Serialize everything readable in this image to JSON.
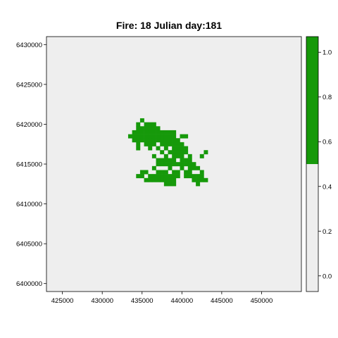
{
  "chart_data": {
    "type": "heatmap",
    "title": "Fire: 18    Julian day:181",
    "xlabel": "",
    "ylabel": "",
    "xlim": [
      423000,
      455000
    ],
    "ylim": [
      6399000,
      6431000
    ],
    "x_ticks": [
      425000,
      430000,
      435000,
      440000,
      445000,
      450000
    ],
    "y_ticks": [
      6400000,
      6405000,
      6410000,
      6415000,
      6420000,
      6425000,
      6430000
    ],
    "grid": false,
    "cell_size": 500,
    "background_value": 0,
    "burned_value": 1,
    "colorbar": {
      "ticks": [
        0.0,
        0.2,
        0.4,
        0.6,
        0.8,
        1.0
      ],
      "tick_labels": [
        "0.0",
        "0.2",
        "0.4",
        "0.6",
        "0.8",
        "1.0"
      ],
      "range": [
        -0.07,
        1.07
      ],
      "break": 0.5,
      "colors": [
        "#eeeeee",
        "#16990a"
      ]
    },
    "burned_cells": [
      [
        435000,
        6420500
      ],
      [
        434500,
        6420000
      ],
      [
        435500,
        6420000
      ],
      [
        436000,
        6420000
      ],
      [
        436500,
        6420000
      ],
      [
        434500,
        6419500
      ],
      [
        435000,
        6419500
      ],
      [
        435500,
        6419500
      ],
      [
        436000,
        6419500
      ],
      [
        436500,
        6419500
      ],
      [
        437000,
        6419500
      ],
      [
        434000,
        6419000
      ],
      [
        434500,
        6419000
      ],
      [
        435000,
        6419000
      ],
      [
        435500,
        6419000
      ],
      [
        436000,
        6419000
      ],
      [
        436500,
        6419000
      ],
      [
        437000,
        6419000
      ],
      [
        437500,
        6419000
      ],
      [
        438000,
        6419000
      ],
      [
        438500,
        6419000
      ],
      [
        439000,
        6419000
      ],
      [
        433500,
        6418500
      ],
      [
        434000,
        6418500
      ],
      [
        434500,
        6418500
      ],
      [
        435000,
        6418500
      ],
      [
        435500,
        6418500
      ],
      [
        436000,
        6418500
      ],
      [
        436500,
        6418500
      ],
      [
        437000,
        6418500
      ],
      [
        437500,
        6418500
      ],
      [
        438000,
        6418500
      ],
      [
        438500,
        6418500
      ],
      [
        439000,
        6418500
      ],
      [
        440000,
        6418500
      ],
      [
        440500,
        6418500
      ],
      [
        434000,
        6418000
      ],
      [
        434500,
        6418000
      ],
      [
        435000,
        6418000
      ],
      [
        435500,
        6418000
      ],
      [
        436000,
        6418000
      ],
      [
        436500,
        6418000
      ],
      [
        437000,
        6418000
      ],
      [
        437500,
        6418000
      ],
      [
        438000,
        6418000
      ],
      [
        438500,
        6418000
      ],
      [
        439000,
        6418000
      ],
      [
        439500,
        6418000
      ],
      [
        434500,
        6417500
      ],
      [
        435500,
        6417500
      ],
      [
        436000,
        6417500
      ],
      [
        436500,
        6417500
      ],
      [
        437500,
        6417500
      ],
      [
        438000,
        6417500
      ],
      [
        438500,
        6417500
      ],
      [
        439000,
        6417500
      ],
      [
        439500,
        6417500
      ],
      [
        440000,
        6417500
      ],
      [
        434500,
        6417000
      ],
      [
        436000,
        6417000
      ],
      [
        437000,
        6417000
      ],
      [
        438000,
        6417000
      ],
      [
        439000,
        6417000
      ],
      [
        439500,
        6417000
      ],
      [
        440000,
        6417000
      ],
      [
        440500,
        6417000
      ],
      [
        437500,
        6416500
      ],
      [
        438500,
        6416500
      ],
      [
        439000,
        6416500
      ],
      [
        439500,
        6416500
      ],
      [
        440000,
        6416500
      ],
      [
        440500,
        6416500
      ],
      [
        443000,
        6416500
      ],
      [
        436500,
        6416000
      ],
      [
        438000,
        6416000
      ],
      [
        439000,
        6416000
      ],
      [
        439500,
        6416000
      ],
      [
        440000,
        6416000
      ],
      [
        441000,
        6416000
      ],
      [
        442500,
        6416000
      ],
      [
        437000,
        6415500
      ],
      [
        437500,
        6415500
      ],
      [
        438000,
        6415500
      ],
      [
        438500,
        6415500
      ],
      [
        439000,
        6415500
      ],
      [
        440000,
        6415500
      ],
      [
        440500,
        6415500
      ],
      [
        441000,
        6415500
      ],
      [
        437000,
        6415000
      ],
      [
        437500,
        6415000
      ],
      [
        438000,
        6415000
      ],
      [
        438500,
        6415000
      ],
      [
        439000,
        6415000
      ],
      [
        439500,
        6415000
      ],
      [
        440000,
        6415000
      ],
      [
        440500,
        6415000
      ],
      [
        441000,
        6415000
      ],
      [
        441500,
        6415000
      ],
      [
        436500,
        6414500
      ],
      [
        438500,
        6414500
      ],
      [
        440000,
        6414500
      ],
      [
        441000,
        6414500
      ],
      [
        441500,
        6414500
      ],
      [
        442000,
        6414500
      ],
      [
        435000,
        6414000
      ],
      [
        435500,
        6414000
      ],
      [
        437000,
        6414000
      ],
      [
        437500,
        6414000
      ],
      [
        438000,
        6414000
      ],
      [
        439000,
        6414000
      ],
      [
        439500,
        6414000
      ],
      [
        440500,
        6414000
      ],
      [
        441000,
        6414000
      ],
      [
        442500,
        6414000
      ],
      [
        434500,
        6413500
      ],
      [
        435000,
        6413500
      ],
      [
        436000,
        6413500
      ],
      [
        436500,
        6413500
      ],
      [
        437000,
        6413500
      ],
      [
        437500,
        6413500
      ],
      [
        438000,
        6413500
      ],
      [
        438500,
        6413500
      ],
      [
        439000,
        6413500
      ],
      [
        439500,
        6413500
      ],
      [
        440500,
        6413500
      ],
      [
        441000,
        6413500
      ],
      [
        441500,
        6413500
      ],
      [
        442000,
        6413500
      ],
      [
        442500,
        6413500
      ],
      [
        435500,
        6413000
      ],
      [
        436000,
        6413000
      ],
      [
        436500,
        6413000
      ],
      [
        437000,
        6413000
      ],
      [
        437500,
        6413000
      ],
      [
        438000,
        6413000
      ],
      [
        438500,
        6413000
      ],
      [
        439000,
        6413000
      ],
      [
        441500,
        6413000
      ],
      [
        442000,
        6413000
      ],
      [
        442500,
        6413000
      ],
      [
        443000,
        6413000
      ],
      [
        438000,
        6412500
      ],
      [
        438500,
        6412500
      ],
      [
        439000,
        6412500
      ],
      [
        442000,
        6412500
      ]
    ]
  }
}
